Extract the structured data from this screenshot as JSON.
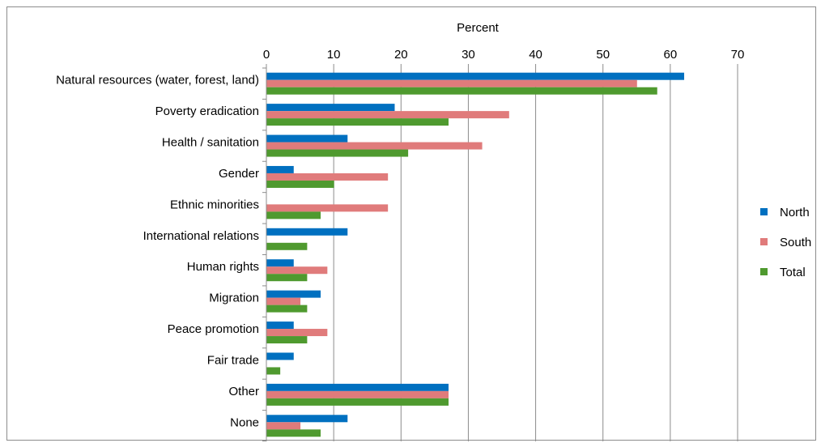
{
  "chart_data": {
    "type": "bar",
    "orientation": "horizontal",
    "xlabel": "Percent",
    "xlim": [
      0,
      70
    ],
    "xticks": [
      0,
      10,
      20,
      30,
      40,
      50,
      60,
      70
    ],
    "grid": "vertical",
    "legend_position": "right",
    "categories": [
      "Natural resources (water, forest, land)",
      "Poverty eradication",
      "Health / sanitation",
      "Gender",
      "Ethnic minorities",
      "International relations",
      "Human rights",
      "Migration",
      "Peace promotion",
      "Fair trade",
      "Other",
      "None"
    ],
    "series": [
      {
        "name": "North",
        "color": "#0070c0",
        "values": [
          62,
          19,
          12,
          4,
          0,
          12,
          4,
          8,
          4,
          4,
          27,
          12
        ]
      },
      {
        "name": "South",
        "color": "#e07b7b",
        "values": [
          55,
          36,
          32,
          18,
          18,
          0,
          9,
          5,
          9,
          0,
          27,
          5
        ]
      },
      {
        "name": "Total",
        "color": "#4f9a2f",
        "values": [
          58,
          27,
          21,
          10,
          8,
          6,
          6,
          6,
          6,
          2,
          27,
          8
        ]
      }
    ]
  }
}
